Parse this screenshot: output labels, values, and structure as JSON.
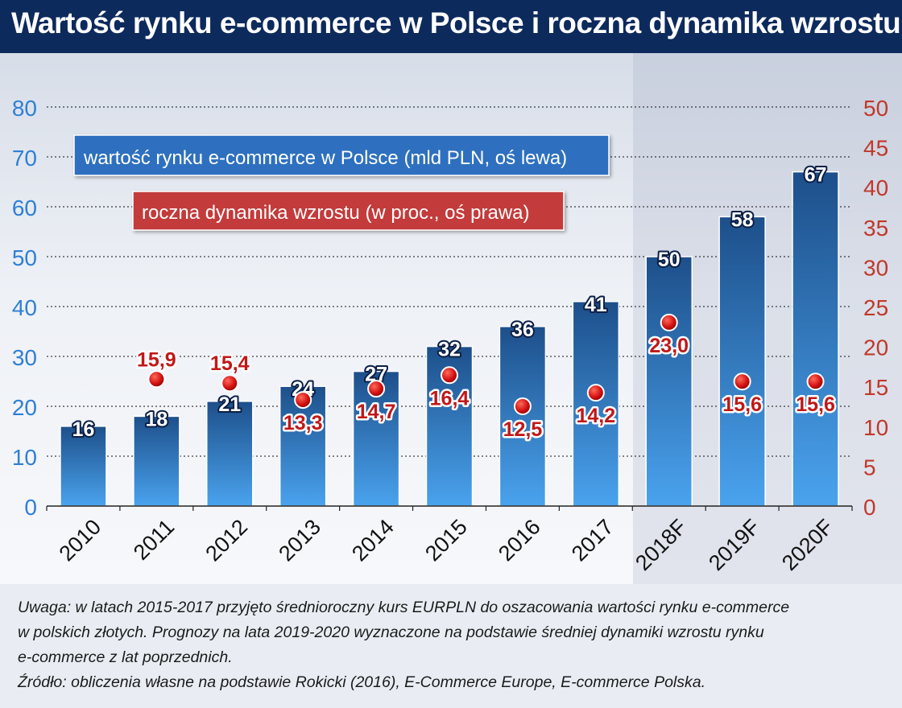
{
  "title": "Wartość rynku e-commerce w Polsce i roczna dynamika wzrostu",
  "notes": [
    "Uwaga: w latach 2015-2017 przyjęto średnioroczny kurs EURPLN do oszacowania wartości rynku e-commerce",
    "w polskich złotych. Prognozy na lata 2019-2020 wyznaczone na podstawie średniej dynamiki wzrostu rynku",
    "e-commerce z lat poprzednich.",
    "Źródło: obliczenia własne na podstawie Rokicki (2016), E-Commerce Europe, E-commerce Polska."
  ],
  "colors": {
    "header": "#0d2a5c",
    "bar_top": "#1d4f8a",
    "bar_bottom": "#4aa3ee",
    "left_axis": "#2f7fd6",
    "right_axis": "#c0392b",
    "marker": "#cc1111"
  },
  "chart_data": {
    "type": "bar",
    "categories": [
      "2010",
      "2011",
      "2012",
      "2013",
      "2014",
      "2015",
      "2016",
      "2017",
      "2018F",
      "2019F",
      "2020F"
    ],
    "series": [
      {
        "name": "wartość rynku e-commerce w Polsce (mld PLN, oś lewa)",
        "type": "bar",
        "axis": "left",
        "values": [
          16,
          18,
          21,
          24,
          27,
          32,
          36,
          41,
          50,
          58,
          67
        ],
        "labels": [
          "16",
          "18",
          "21",
          "24",
          "27",
          "32",
          "36",
          "41",
          "50",
          "58",
          "67"
        ]
      },
      {
        "name": "roczna dynamika wzrostu (w proc., oś prawa)",
        "type": "scatter",
        "axis": "right",
        "values": [
          null,
          15.9,
          15.4,
          13.3,
          14.7,
          16.4,
          12.5,
          14.2,
          23.0,
          15.6,
          15.6
        ],
        "labels": [
          "",
          "15,9",
          "15,4",
          "13,3",
          "14,7",
          "16,4",
          "12,5",
          "14,2",
          "23,0",
          "15,6",
          "15,6"
        ]
      }
    ],
    "y_left": {
      "ylim": [
        0,
        80
      ],
      "ticks": [
        "0",
        "10",
        "20",
        "30",
        "40",
        "50",
        "60",
        "70",
        "80"
      ]
    },
    "y_right": {
      "ylim": [
        0,
        50
      ],
      "ticks": [
        "0",
        "5",
        "10",
        "15",
        "20",
        "25",
        "30",
        "35",
        "40",
        "45",
        "50"
      ]
    },
    "grid": true,
    "forecast_shaded": true,
    "legend_placement": "top-left"
  }
}
